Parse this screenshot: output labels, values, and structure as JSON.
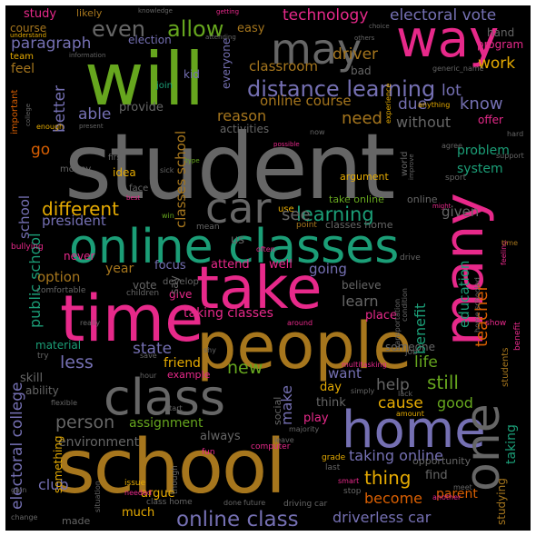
{
  "palette": {
    "background": "#000000",
    "green": "#66a61e",
    "gray": "#666666",
    "pink": "#e7298a",
    "gold": "#a6761d",
    "purple": "#7570b3",
    "teal": "#1b9e77",
    "orange": "#d95f02",
    "yellow": "#e6ab02"
  },
  "words": [
    {
      "text": "student"
    },
    {
      "text": "will"
    },
    {
      "text": "school"
    },
    {
      "text": "people"
    },
    {
      "text": "time"
    },
    {
      "text": "take"
    },
    {
      "text": "online classes"
    },
    {
      "text": "home"
    },
    {
      "text": "class"
    },
    {
      "text": "many"
    },
    {
      "text": "way"
    },
    {
      "text": "may"
    },
    {
      "text": "one"
    },
    {
      "text": "car"
    },
    {
      "text": "even"
    },
    {
      "text": "allow"
    },
    {
      "text": "distance learning"
    },
    {
      "text": "online class"
    },
    {
      "text": "learning"
    },
    {
      "text": "different"
    },
    {
      "text": "technology"
    },
    {
      "text": "electoral vote"
    },
    {
      "text": "paragraph"
    },
    {
      "text": "driver"
    },
    {
      "text": "work"
    },
    {
      "text": "classroom"
    },
    {
      "text": "lot"
    },
    {
      "text": "know"
    },
    {
      "text": "online course"
    },
    {
      "text": "reason"
    },
    {
      "text": "need"
    },
    {
      "text": "able"
    },
    {
      "text": "better"
    },
    {
      "text": "go"
    },
    {
      "text": "school"
    },
    {
      "text": "classes school"
    },
    {
      "text": "electoral college"
    },
    {
      "text": "public school"
    },
    {
      "text": "new"
    },
    {
      "text": "state"
    },
    {
      "text": "less"
    },
    {
      "text": "benefit"
    },
    {
      "text": "teacher"
    },
    {
      "text": "education"
    },
    {
      "text": "still"
    },
    {
      "text": "help"
    },
    {
      "text": "life"
    },
    {
      "text": "make"
    },
    {
      "text": "cause"
    },
    {
      "text": "good"
    },
    {
      "text": "person"
    },
    {
      "text": "assignment"
    },
    {
      "text": "thing"
    },
    {
      "text": "taking online"
    },
    {
      "text": "become"
    },
    {
      "text": "driverless car"
    },
    {
      "text": "club"
    },
    {
      "text": "taking classes"
    },
    {
      "text": "going"
    },
    {
      "text": "learn"
    },
    {
      "text": "want"
    },
    {
      "text": "year"
    },
    {
      "text": "option"
    },
    {
      "text": "president"
    },
    {
      "text": "given"
    },
    {
      "text": "problem"
    },
    {
      "text": "system"
    },
    {
      "text": "studying"
    },
    {
      "text": "taking"
    },
    {
      "text": "due"
    },
    {
      "text": "without"
    },
    {
      "text": "feel"
    },
    {
      "text": "study"
    },
    {
      "text": "easy"
    },
    {
      "text": "election"
    },
    {
      "text": "everyone"
    },
    {
      "text": "provide"
    },
    {
      "text": "kid"
    },
    {
      "text": "join"
    },
    {
      "text": "bad"
    },
    {
      "text": "hand"
    },
    {
      "text": "program"
    },
    {
      "text": "offer"
    },
    {
      "text": "likely"
    },
    {
      "text": "course"
    },
    {
      "text": "team"
    },
    {
      "text": "important"
    },
    {
      "text": "enough"
    },
    {
      "text": "activities"
    },
    {
      "text": "world"
    },
    {
      "text": "idea"
    },
    {
      "text": "money"
    },
    {
      "text": "first"
    },
    {
      "text": "argument"
    },
    {
      "text": "sport"
    },
    {
      "text": "face"
    },
    {
      "text": "take online"
    },
    {
      "text": "online"
    },
    {
      "text": "classes home"
    },
    {
      "text": "point"
    },
    {
      "text": "use"
    },
    {
      "text": "us"
    },
    {
      "text": "mean"
    },
    {
      "text": "win"
    },
    {
      "text": "bullying"
    },
    {
      "text": "never"
    },
    {
      "text": "focus"
    },
    {
      "text": "attend"
    },
    {
      "text": "well"
    },
    {
      "text": "see"
    },
    {
      "text": "vote"
    },
    {
      "text": "develop"
    },
    {
      "text": "give"
    },
    {
      "text": "say"
    },
    {
      "text": "believe"
    },
    {
      "text": "material"
    },
    {
      "text": "friend"
    },
    {
      "text": "example"
    },
    {
      "text": "skill"
    },
    {
      "text": "ability"
    },
    {
      "text": "place"
    },
    {
      "text": "someone"
    },
    {
      "text": "day"
    },
    {
      "text": "think"
    },
    {
      "text": "social"
    },
    {
      "text": "play"
    },
    {
      "text": "environment"
    },
    {
      "text": "always"
    },
    {
      "text": "something"
    },
    {
      "text": "argue"
    },
    {
      "text": "much"
    },
    {
      "text": "made"
    },
    {
      "text": "opportunity"
    },
    {
      "text": "find"
    },
    {
      "text": "parent"
    },
    {
      "text": "grade"
    },
    {
      "text": "last"
    },
    {
      "text": "computer"
    },
    {
      "text": "fun"
    },
    {
      "text": "issue"
    },
    {
      "text": "needed"
    },
    {
      "text": "class home"
    },
    {
      "text": "done"
    },
    {
      "text": "future"
    },
    {
      "text": "driving car"
    },
    {
      "text": "smart"
    },
    {
      "text": "stop"
    },
    {
      "text": "another"
    },
    {
      "text": "meet"
    },
    {
      "text": "change"
    },
    {
      "text": "gain"
    },
    {
      "text": "situation"
    },
    {
      "text": "though"
    },
    {
      "text": "start"
    },
    {
      "text": "majority"
    },
    {
      "text": "simply"
    },
    {
      "text": "leave"
    },
    {
      "text": "lack"
    },
    {
      "text": "amount"
    },
    {
      "text": "multitasking"
    },
    {
      "text": "transportation"
    },
    {
      "text": "job"
    },
    {
      "text": "really"
    },
    {
      "text": "children"
    },
    {
      "text": "shy"
    },
    {
      "text": "hour"
    },
    {
      "text": "save"
    },
    {
      "text": "flexible"
    },
    {
      "text": "try"
    },
    {
      "text": "students"
    },
    {
      "text": "show"
    },
    {
      "text": "benefit"
    },
    {
      "text": "home schooled"
    },
    {
      "text": "condition"
    },
    {
      "text": "feeling"
    },
    {
      "text": "time"
    },
    {
      "text": "drive"
    },
    {
      "text": "often"
    },
    {
      "text": "comfortable"
    },
    {
      "text": "around"
    },
    {
      "text": "possible"
    },
    {
      "text": "improve"
    },
    {
      "text": "now"
    },
    {
      "text": "experience"
    },
    {
      "text": "anything"
    },
    {
      "text": "agree"
    },
    {
      "text": "hard"
    },
    {
      "text": "support"
    },
    {
      "text": "type"
    },
    {
      "text": "sick"
    },
    {
      "text": "best"
    },
    {
      "text": "might"
    },
    {
      "text": "present"
    },
    {
      "text": "information"
    },
    {
      "text": "understand"
    },
    {
      "text": "knowledge"
    },
    {
      "text": "getting"
    },
    {
      "text": "attending"
    },
    {
      "text": "choice"
    },
    {
      "text": "others"
    },
    {
      "text": "generic_name"
    },
    {
      "text": "college"
    }
  ]
}
